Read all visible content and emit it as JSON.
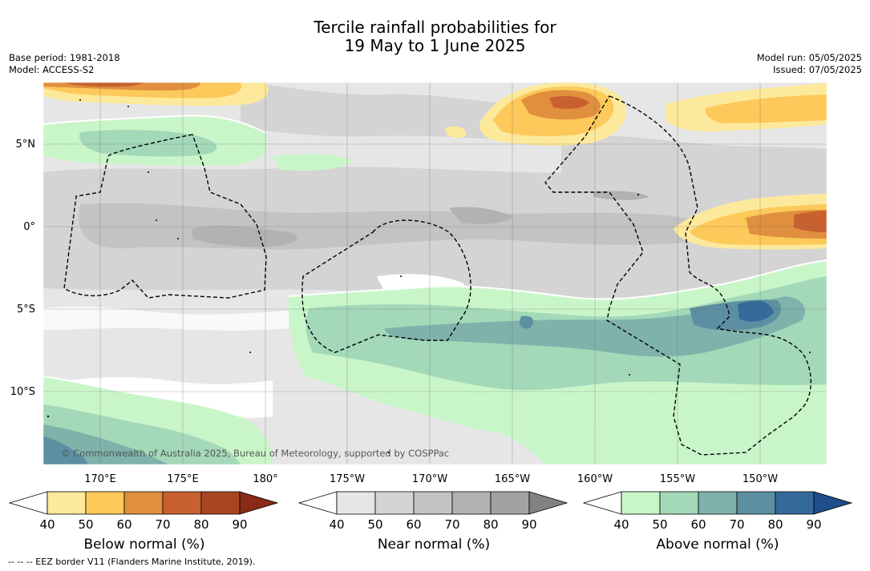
{
  "title": {
    "line1": "Tercile rainfall probabilities for",
    "line2": "19 May to 1 June 2025"
  },
  "meta_left": {
    "base_period": "Base period: 1981-2018",
    "model": "Model: ACCESS-S2"
  },
  "meta_right": {
    "model_run": "Model run: 05/05/2025",
    "issued": "Issued: 07/05/2025"
  },
  "map": {
    "lat_labels": [
      "5°N",
      "0°",
      "5°S",
      "10°S"
    ],
    "lon_labels": [
      "170°E",
      "175°E",
      "180°",
      "175°W",
      "170°W",
      "165°W",
      "160°W",
      "155°W",
      "150°W"
    ],
    "copyright": "© Commonwealth of Australia 2025, Bureau of Meteorology, supported by COSPPac",
    "colors": {
      "land_background": "#ffffff",
      "eez_border": "#000000",
      "grid": "#555555"
    }
  },
  "colorbars": [
    {
      "name": "below-normal",
      "label": "Below normal (%)",
      "ticks": [
        "40",
        "50",
        "60",
        "70",
        "80",
        "90"
      ],
      "colors": [
        "#ffffff",
        "#fde99b",
        "#fcc95a",
        "#e08f3f",
        "#c8612f",
        "#a84623",
        "#8b2a16"
      ]
    },
    {
      "name": "near-normal",
      "label": "Near normal (%)",
      "ticks": [
        "40",
        "50",
        "60",
        "70",
        "80",
        "90"
      ],
      "colors": [
        "#ffffff",
        "#e6e6e6",
        "#d4d4d4",
        "#c3c3c3",
        "#b2b2b2",
        "#a2a2a2",
        "#828282"
      ]
    },
    {
      "name": "above-normal",
      "label": "Above normal (%)",
      "ticks": [
        "40",
        "50",
        "60",
        "70",
        "80",
        "90"
      ],
      "colors": [
        "#ffffff",
        "#c9f6c9",
        "#a3d8b9",
        "#7fb2aa",
        "#5b8fa1",
        "#356a9a",
        "#1f4e8a"
      ]
    }
  ],
  "footnote": "--  --  -- EEZ border V11 (Flanders Marine Institute, 2019)."
}
